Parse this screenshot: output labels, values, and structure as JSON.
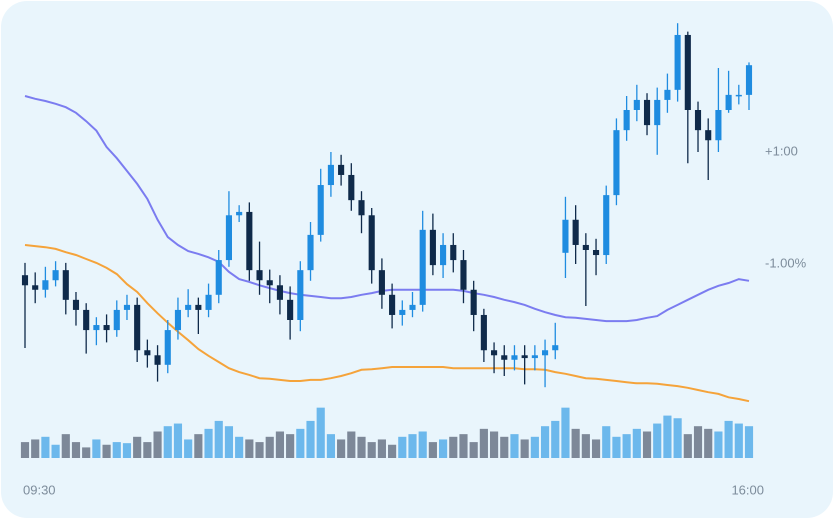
{
  "chart_data": {
    "type": "candlestick",
    "categories": [
      "09:30",
      null,
      null,
      null,
      null,
      null,
      null,
      null,
      null,
      null,
      null,
      null,
      null,
      null,
      null,
      null,
      null,
      null,
      null,
      null,
      null,
      null,
      null,
      null,
      null,
      null,
      null,
      null,
      null,
      null,
      null,
      null,
      null,
      null,
      null,
      null,
      null,
      null,
      null,
      null,
      null,
      null,
      null,
      null,
      null,
      null,
      null,
      null,
      null,
      null,
      null,
      null,
      null,
      null,
      null,
      null,
      null,
      null,
      null,
      null,
      null,
      null,
      null,
      null,
      null,
      null,
      null,
      null,
      null,
      null,
      null,
      "16:00"
    ],
    "open": [
      -1.2,
      -1.38,
      -1.46,
      -1.29,
      -1.11,
      -1.64,
      -1.82,
      -2.18,
      -2.09,
      -2.18,
      -1.82,
      -1.73,
      -2.54,
      -2.63,
      -2.8,
      -2.18,
      -1.82,
      -1.73,
      -1.82,
      -1.55,
      -0.93,
      -0.13,
      -0.07,
      -1.11,
      -1.29,
      -1.38,
      -1.64,
      -2.0,
      -1.11,
      -0.48,
      0.41,
      0.77,
      0.59,
      0.14,
      -0.13,
      -1.11,
      -1.55,
      -1.91,
      -1.82,
      -1.73,
      -0.39,
      -1.02,
      -0.66,
      -0.93,
      -1.46,
      -1.91,
      -2.54,
      -2.63,
      -2.71,
      -2.63,
      -2.68,
      -2.63,
      -2.54,
      -0.8,
      -0.21,
      -0.66,
      -0.75,
      -0.84,
      0.23,
      1.39,
      1.75,
      1.93,
      1.48,
      1.93,
      2.11,
      3.09,
      1.75,
      1.39,
      1.21,
      1.75,
      2.02,
      2.02
    ],
    "high": [
      -0.98,
      -1.15,
      -1.05,
      -0.95,
      -0.98,
      -1.5,
      -1.7,
      -1.95,
      -1.9,
      -1.65,
      -1.55,
      -1.6,
      -2.35,
      -2.45,
      -2.0,
      -1.6,
      -1.45,
      -1.6,
      -1.35,
      -0.75,
      0.3,
      0.05,
      0.1,
      -0.6,
      -1.1,
      -1.2,
      -1.4,
      -0.95,
      -0.25,
      0.7,
      1.0,
      0.95,
      0.8,
      0.3,
      0.0,
      -0.9,
      -1.35,
      -1.65,
      -1.5,
      -0.05,
      -0.1,
      -0.45,
      -0.45,
      -0.75,
      -1.3,
      -1.8,
      -2.4,
      -2.45,
      -2.45,
      -2.45,
      -2.45,
      -2.35,
      -2.05,
      0.2,
      0.05,
      -0.45,
      -0.55,
      0.4,
      1.6,
      2.0,
      2.2,
      2.05,
      2.15,
      2.4,
      3.3,
      3.15,
      1.9,
      1.6,
      2.5,
      2.45,
      2.2,
      2.6
    ],
    "low": [
      -2.5,
      -1.7,
      -1.6,
      -1.4,
      -1.9,
      -2.1,
      -2.6,
      -2.45,
      -2.4,
      -2.3,
      -2.0,
      -2.75,
      -2.85,
      -3.1,
      -2.95,
      -2.35,
      -1.95,
      -2.25,
      -1.95,
      -1.7,
      -1.05,
      -0.25,
      -1.3,
      -1.55,
      -1.7,
      -1.9,
      -2.35,
      -2.2,
      -1.3,
      -0.6,
      0.2,
      0.4,
      -0.05,
      -0.45,
      -1.35,
      -1.8,
      -2.15,
      -2.1,
      -1.95,
      -1.85,
      -1.2,
      -1.25,
      -1.15,
      -1.7,
      -2.2,
      -2.75,
      -2.95,
      -3.0,
      -2.9,
      -3.15,
      -2.9,
      -3.2,
      -2.7,
      -1.25,
      -1.0,
      -1.75,
      -1.2,
      -1.0,
      0.05,
      1.2,
      1.55,
      1.3,
      0.95,
      1.7,
      1.9,
      0.8,
      1.0,
      0.5,
      1.0,
      1.7,
      1.85,
      1.75
    ],
    "close": [
      -1.38,
      -1.46,
      -1.29,
      -1.11,
      -1.64,
      -1.82,
      -2.18,
      -2.09,
      -2.18,
      -1.82,
      -1.73,
      -2.54,
      -2.63,
      -2.8,
      -2.18,
      -1.82,
      -1.73,
      -1.82,
      -1.55,
      -0.93,
      -0.13,
      -0.07,
      -1.11,
      -1.29,
      -1.38,
      -1.64,
      -2.0,
      -1.11,
      -0.48,
      0.41,
      0.77,
      0.59,
      0.14,
      -0.13,
      -1.11,
      -1.55,
      -1.91,
      -1.82,
      -1.73,
      -0.39,
      -1.02,
      -0.66,
      -0.93,
      -1.46,
      -1.91,
      -2.54,
      -2.63,
      -2.71,
      -2.63,
      -2.68,
      -2.63,
      -2.54,
      -2.45,
      -0.21,
      -0.66,
      -0.75,
      -0.84,
      0.23,
      1.39,
      1.75,
      1.93,
      1.48,
      1.93,
      2.11,
      3.09,
      1.75,
      1.39,
      1.21,
      1.75,
      2.02,
      2.02,
      2.55
    ],
    "up_color": "#1f8ce0",
    "down_color": "#0f2a4a",
    "volume": [
      30,
      35,
      40,
      25,
      45,
      30,
      20,
      35,
      25,
      30,
      28,
      40,
      30,
      50,
      60,
      65,
      35,
      45,
      55,
      70,
      60,
      40,
      35,
      30,
      40,
      50,
      45,
      55,
      70,
      95,
      45,
      35,
      50,
      40,
      30,
      35,
      25,
      40,
      45,
      50,
      30,
      35,
      40,
      45,
      30,
      55,
      50,
      40,
      45,
      35,
      40,
      60,
      70,
      95,
      55,
      45,
      35,
      60,
      40,
      45,
      55,
      50,
      65,
      80,
      75,
      45,
      60,
      55,
      50,
      70,
      65,
      60
    ],
    "volume_ylim": [
      0,
      100
    ],
    "volume_up_color": "#6cb8ec",
    "volume_down_color": "#7d8898",
    "series": [
      {
        "color": "#7b7cf0",
        "values": [
          2.0,
          1.95,
          1.91,
          1.86,
          1.8,
          1.7,
          1.55,
          1.38,
          1.09,
          0.89,
          0.66,
          0.43,
          0.16,
          -0.21,
          -0.52,
          -0.66,
          -0.77,
          -0.82,
          -0.88,
          -0.96,
          -1.14,
          -1.27,
          -1.32,
          -1.38,
          -1.43,
          -1.48,
          -1.52,
          -1.55,
          -1.57,
          -1.59,
          -1.61,
          -1.61,
          -1.59,
          -1.55,
          -1.52,
          -1.48,
          -1.46,
          -1.46,
          -1.46,
          -1.46,
          -1.46,
          -1.46,
          -1.46,
          -1.48,
          -1.52,
          -1.55,
          -1.59,
          -1.64,
          -1.68,
          -1.73,
          -1.8,
          -1.86,
          -1.91,
          -1.95,
          -1.96,
          -1.98,
          -2.0,
          -2.02,
          -2.02,
          -2.02,
          -2.0,
          -1.96,
          -1.93,
          -1.82,
          -1.73,
          -1.64,
          -1.55,
          -1.46,
          -1.39,
          -1.34,
          -1.27,
          -1.3
        ]
      },
      {
        "color": "#f5a33a",
        "values": [
          -0.66,
          -0.68,
          -0.7,
          -0.73,
          -0.79,
          -0.84,
          -0.91,
          -0.98,
          -1.07,
          -1.18,
          -1.36,
          -1.5,
          -1.7,
          -1.88,
          -2.05,
          -2.21,
          -2.36,
          -2.52,
          -2.64,
          -2.75,
          -2.86,
          -2.93,
          -2.98,
          -3.04,
          -3.05,
          -3.07,
          -3.09,
          -3.09,
          -3.07,
          -3.07,
          -3.04,
          -3.0,
          -2.95,
          -2.89,
          -2.88,
          -2.86,
          -2.84,
          -2.84,
          -2.84,
          -2.84,
          -2.84,
          -2.84,
          -2.86,
          -2.86,
          -2.86,
          -2.86,
          -2.86,
          -2.86,
          -2.86,
          -2.88,
          -2.88,
          -2.89,
          -2.93,
          -2.96,
          -3.0,
          -3.04,
          -3.05,
          -3.07,
          -3.09,
          -3.11,
          -3.13,
          -3.13,
          -3.14,
          -3.16,
          -3.18,
          -3.21,
          -3.25,
          -3.29,
          -3.32,
          -3.38,
          -3.41,
          -3.45
        ]
      }
    ],
    "ylim": [
      -3.5,
      3.5
    ],
    "yticks": [
      {
        "value": 1,
        "label": "+1:00"
      },
      {
        "value": -1,
        "label": "-1.00%"
      }
    ]
  }
}
